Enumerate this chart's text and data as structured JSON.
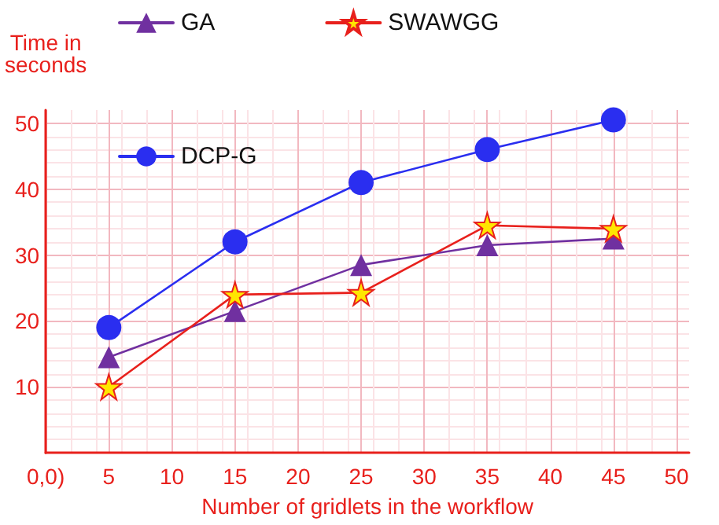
{
  "chart_data": {
    "type": "line",
    "xlabel": "Number of gridlets in the workflow",
    "ylabel": "Time in\nseconds",
    "x": [
      5,
      15,
      25,
      35,
      45
    ],
    "series": [
      {
        "name": "GA",
        "color": "#7030a0",
        "marker": "triangle",
        "values": [
          14.5,
          21.5,
          28.5,
          31.5,
          32.5
        ]
      },
      {
        "name": "SWAWGG",
        "color": "#e8201c",
        "marker": "star",
        "values": [
          10,
          24,
          24.3,
          34.5,
          34
        ]
      },
      {
        "name": "DCP-G",
        "color": "#2a2ef0",
        "marker": "circle",
        "values": [
          19,
          32,
          41,
          46,
          50.5
        ]
      }
    ],
    "xlim": [
      0,
      51
    ],
    "xticks": [
      {
        "value": 0,
        "label": "0,0)"
      },
      5,
      10,
      15,
      20,
      25,
      30,
      35,
      40,
      45,
      50
    ],
    "ylim": [
      0,
      52
    ],
    "yticks": [
      10,
      20,
      30,
      40,
      50
    ],
    "grid": true,
    "legend": "top"
  }
}
